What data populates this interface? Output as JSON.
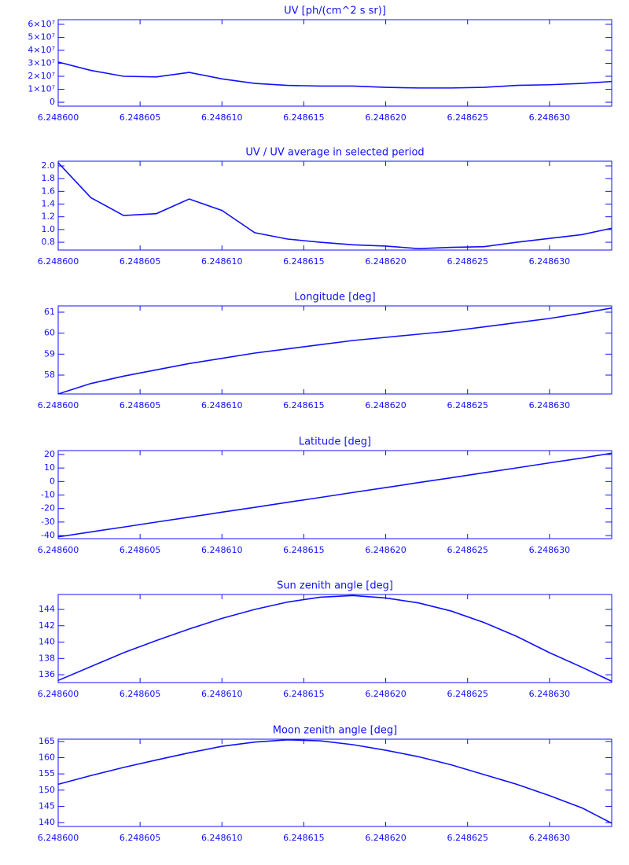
{
  "chart_data": [
    {
      "type": "line",
      "title": "UV [ph/(cm^2 s sr)]",
      "color": "#1010ff",
      "x": [
        6.2486,
        6.248602,
        6.248604,
        6.248606,
        6.248608,
        6.24861,
        6.248612,
        6.248614,
        6.248616,
        6.248618,
        6.24862,
        6.248622,
        6.248624,
        6.248626,
        6.248628,
        6.24863,
        6.248632,
        6.2486338
      ],
      "values": [
        31000000,
        24500000,
        20000000,
        19500000,
        23000000,
        18000000,
        14500000,
        13000000,
        12500000,
        12500000,
        11500000,
        11000000,
        11000000,
        11500000,
        13000000,
        13500000,
        14500000,
        16000000
      ],
      "xlim": [
        6.2486,
        6.2486338
      ],
      "xticks": [
        {
          "value": 6.2486,
          "label": "6.248600"
        },
        6.248605,
        {
          "value": 6.24861,
          "label": "6.248610"
        },
        6.248615,
        {
          "value": 6.24862,
          "label": "6.248620"
        },
        6.248625,
        {
          "value": 6.24863,
          "label": "6.248630"
        }
      ],
      "ylim": [
        -3000000,
        63600000
      ],
      "yticks": [
        0,
        {
          "value": 10000000,
          "label": "1×10⁷"
        },
        {
          "value": 20000000,
          "label": "2×10⁷"
        },
        {
          "value": 30000000,
          "label": "3×10⁷"
        },
        {
          "value": 40000000,
          "label": "4×10⁷"
        },
        {
          "value": 50000000,
          "label": "5×10⁷"
        },
        {
          "value": 60000000,
          "label": "6×10⁷"
        }
      ]
    },
    {
      "type": "line",
      "title": "UV / UV average in selected period",
      "color": "#1010ff",
      "x": [
        6.2486,
        6.248602,
        6.248604,
        6.248606,
        6.248608,
        6.24861,
        6.248612,
        6.248614,
        6.248616,
        6.248618,
        6.24862,
        6.248622,
        6.248624,
        6.248626,
        6.248628,
        6.24863,
        6.248632,
        6.2486338
      ],
      "values": [
        2.05,
        1.5,
        1.22,
        1.25,
        1.48,
        1.3,
        0.95,
        0.85,
        0.8,
        0.76,
        0.74,
        0.7,
        0.72,
        0.73,
        0.8,
        0.86,
        0.92,
        1.02
      ],
      "xlim": [
        6.2486,
        6.2486338
      ],
      "xticks": [
        {
          "value": 6.2486,
          "label": "6.248600"
        },
        6.248605,
        {
          "value": 6.24861,
          "label": "6.248610"
        },
        6.248615,
        {
          "value": 6.24862,
          "label": "6.248620"
        },
        6.248625,
        {
          "value": 6.24863,
          "label": "6.248630"
        }
      ],
      "ylim": [
        0.677,
        2.074
      ],
      "yticks": [
        0.8,
        {
          "value": 1,
          "label": "1.0"
        },
        1.2,
        1.4,
        1.6,
        1.8,
        {
          "value": 2,
          "label": "2.0"
        }
      ]
    },
    {
      "type": "line",
      "title": "Longitude [deg]",
      "color": "#1010ff",
      "x": [
        6.2486,
        6.248602,
        6.248604,
        6.248606,
        6.248608,
        6.24861,
        6.248612,
        6.248614,
        6.248616,
        6.248618,
        6.24862,
        6.248622,
        6.248624,
        6.248626,
        6.248628,
        6.24863,
        6.248632,
        6.2486338
      ],
      "values": [
        57.1,
        57.6,
        57.95,
        58.25,
        58.55,
        58.8,
        59.05,
        59.25,
        59.45,
        59.65,
        59.8,
        59.95,
        60.1,
        60.3,
        60.5,
        60.7,
        60.95,
        61.2
      ],
      "xlim": [
        6.2486,
        6.2486338
      ],
      "xticks": [
        {
          "value": 6.2486,
          "label": "6.248600"
        },
        6.248605,
        {
          "value": 6.24861,
          "label": "6.248610"
        },
        6.248615,
        {
          "value": 6.24862,
          "label": "6.248620"
        },
        6.248625,
        {
          "value": 6.24863,
          "label": "6.248630"
        }
      ],
      "ylim": [
        57.1,
        61.3
      ],
      "yticks": [
        58,
        59,
        60,
        61
      ]
    },
    {
      "type": "line",
      "title": "Latitude [deg]",
      "color": "#1010ff",
      "x": [
        6.2486,
        6.248602,
        6.248604,
        6.248606,
        6.248608,
        6.24861,
        6.248612,
        6.248614,
        6.248616,
        6.248618,
        6.24862,
        6.248622,
        6.248624,
        6.248626,
        6.248628,
        6.24863,
        6.248632,
        6.2486338
      ],
      "values": [
        -41,
        -37.3,
        -33.7,
        -30,
        -26.4,
        -22.7,
        -19.1,
        -15.4,
        -11.8,
        -8.1,
        -4.5,
        -0.8,
        2.8,
        6.5,
        10.1,
        13.8,
        17.4,
        21
      ],
      "xlim": [
        6.2486,
        6.2486338
      ],
      "xticks": [
        {
          "value": 6.2486,
          "label": "6.248600"
        },
        6.248605,
        {
          "value": 6.24861,
          "label": "6.248610"
        },
        6.248615,
        {
          "value": 6.24862,
          "label": "6.248620"
        },
        6.248625,
        {
          "value": 6.24863,
          "label": "6.248630"
        }
      ],
      "ylim": [
        -42.3,
        22.9
      ],
      "yticks": [
        -40,
        -30,
        -20,
        -10,
        0,
        10,
        20
      ]
    },
    {
      "type": "line",
      "title": "Sun zenith angle [deg]",
      "color": "#1010ff",
      "x": [
        6.2486,
        6.248602,
        6.248604,
        6.248606,
        6.248608,
        6.24861,
        6.248612,
        6.248614,
        6.248616,
        6.248618,
        6.24862,
        6.248622,
        6.248624,
        6.248626,
        6.248628,
        6.24863,
        6.248632,
        6.2486338
      ],
      "values": [
        135.3,
        137.0,
        138.7,
        140.2,
        141.6,
        142.9,
        144.0,
        144.9,
        145.5,
        145.7,
        145.4,
        144.8,
        143.8,
        142.4,
        140.7,
        138.7,
        136.9,
        135.2
      ],
      "xlim": [
        6.2486,
        6.2486338
      ],
      "xticks": [
        {
          "value": 6.2486,
          "label": "6.248600"
        },
        6.248605,
        {
          "value": 6.24861,
          "label": "6.248610"
        },
        6.248615,
        {
          "value": 6.24862,
          "label": "6.248620"
        },
        6.248625,
        {
          "value": 6.24863,
          "label": "6.248630"
        }
      ],
      "ylim": [
        135.04,
        145.83
      ],
      "yticks": [
        136,
        138,
        140,
        142,
        144
      ]
    },
    {
      "type": "line",
      "title": "Moon zenith angle [deg]",
      "color": "#1010ff",
      "x": [
        6.2486,
        6.248602,
        6.248604,
        6.248606,
        6.248608,
        6.24861,
        6.248612,
        6.248614,
        6.248616,
        6.248618,
        6.24862,
        6.248622,
        6.248624,
        6.248626,
        6.248628,
        6.24863,
        6.248632,
        6.2486338
      ],
      "values": [
        151.8,
        154.5,
        157,
        159.3,
        161.5,
        163.5,
        164.8,
        165.5,
        165.2,
        164.0,
        162.3,
        160.3,
        157.8,
        154.8,
        151.8,
        148.3,
        144.5,
        139.8
      ],
      "xlim": [
        6.2486,
        6.2486338
      ],
      "xticks": [
        {
          "value": 6.2486,
          "label": "6.248600"
        },
        6.248605,
        {
          "value": 6.24861,
          "label": "6.248610"
        },
        6.248615,
        {
          "value": 6.24862,
          "label": "6.248620"
        },
        6.248625,
        {
          "value": 6.24863,
          "label": "6.248630"
        }
      ],
      "ylim": [
        138.8,
        165.7
      ],
      "yticks": [
        140,
        145,
        150,
        155,
        160,
        165
      ]
    }
  ]
}
